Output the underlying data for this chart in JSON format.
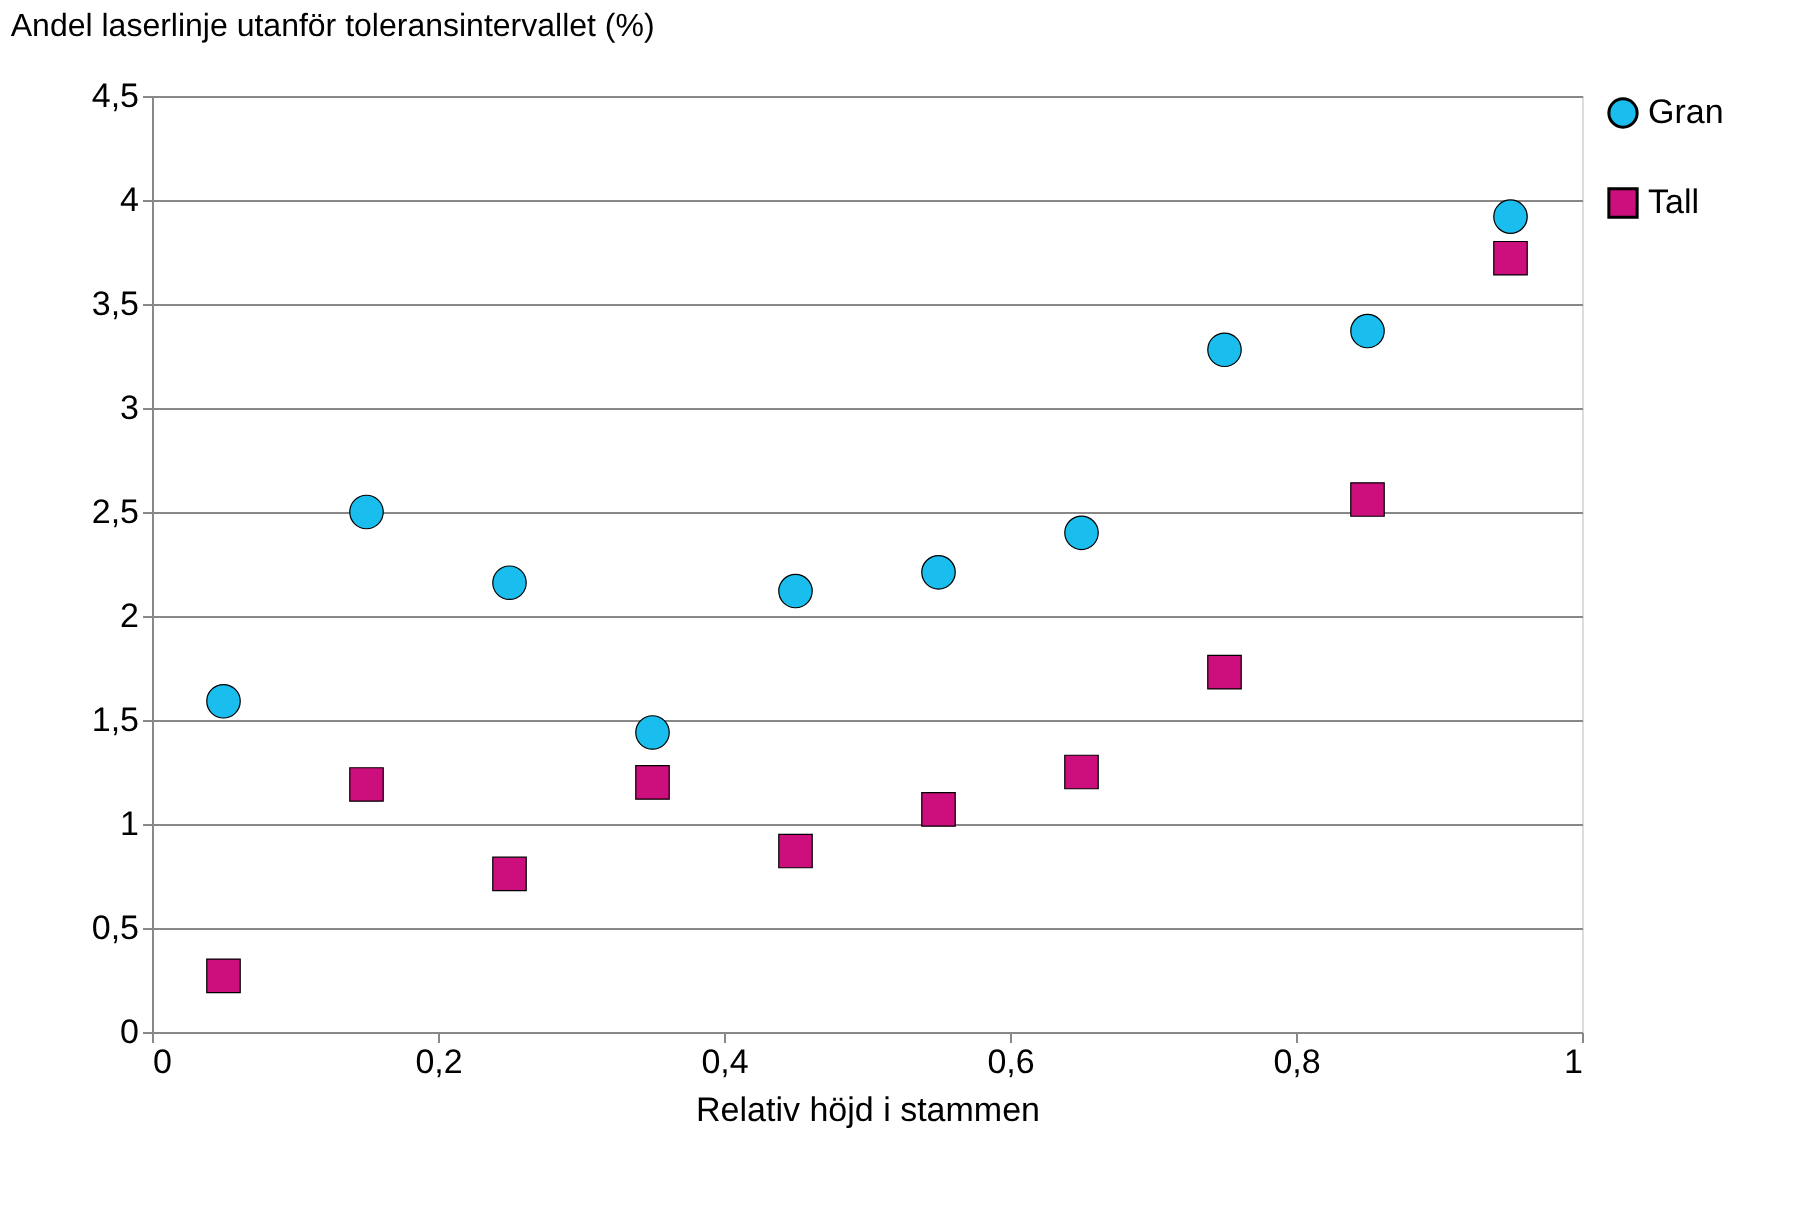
{
  "chart_data": {
    "type": "scatter",
    "title": "Andel laserlinje utanför toleransintervallet (%)",
    "xlabel": "Relativ höjd i stammen",
    "x": [
      0.05,
      0.15,
      0.25,
      0.35,
      0.45,
      0.55,
      0.65,
      0.75,
      0.85,
      0.95
    ],
    "series": [
      {
        "name": "Gran",
        "color": "#19bdee",
        "marker": "circle",
        "values": [
          1.59,
          2.5,
          2.16,
          1.44,
          2.12,
          2.21,
          2.4,
          3.28,
          3.37,
          3.92
        ]
      },
      {
        "name": "Tall",
        "color": "#cc0f7c",
        "marker": "square",
        "values": [
          0.27,
          1.19,
          0.76,
          1.2,
          0.87,
          1.07,
          1.25,
          1.73,
          2.56,
          3.72
        ]
      }
    ],
    "xlim": [
      0,
      1
    ],
    "xticks": [
      0,
      {
        "value": 0.2,
        "label": "0,2"
      },
      {
        "value": 0.4,
        "label": "0,4"
      },
      {
        "value": 0.6,
        "label": "0,6"
      },
      {
        "value": 0.8,
        "label": "0,8"
      },
      1
    ],
    "ylim": [
      0,
      4.5
    ],
    "yticks": [
      0,
      {
        "value": 0.5,
        "label": "0,5"
      },
      1,
      {
        "value": 1.5,
        "label": "1,5"
      },
      2,
      {
        "value": 2.5,
        "label": "2,5"
      },
      3,
      {
        "value": 3.5,
        "label": "3,5"
      },
      4,
      {
        "value": 4.5,
        "label": "4,5"
      }
    ],
    "grid": "y",
    "legend": "right"
  }
}
